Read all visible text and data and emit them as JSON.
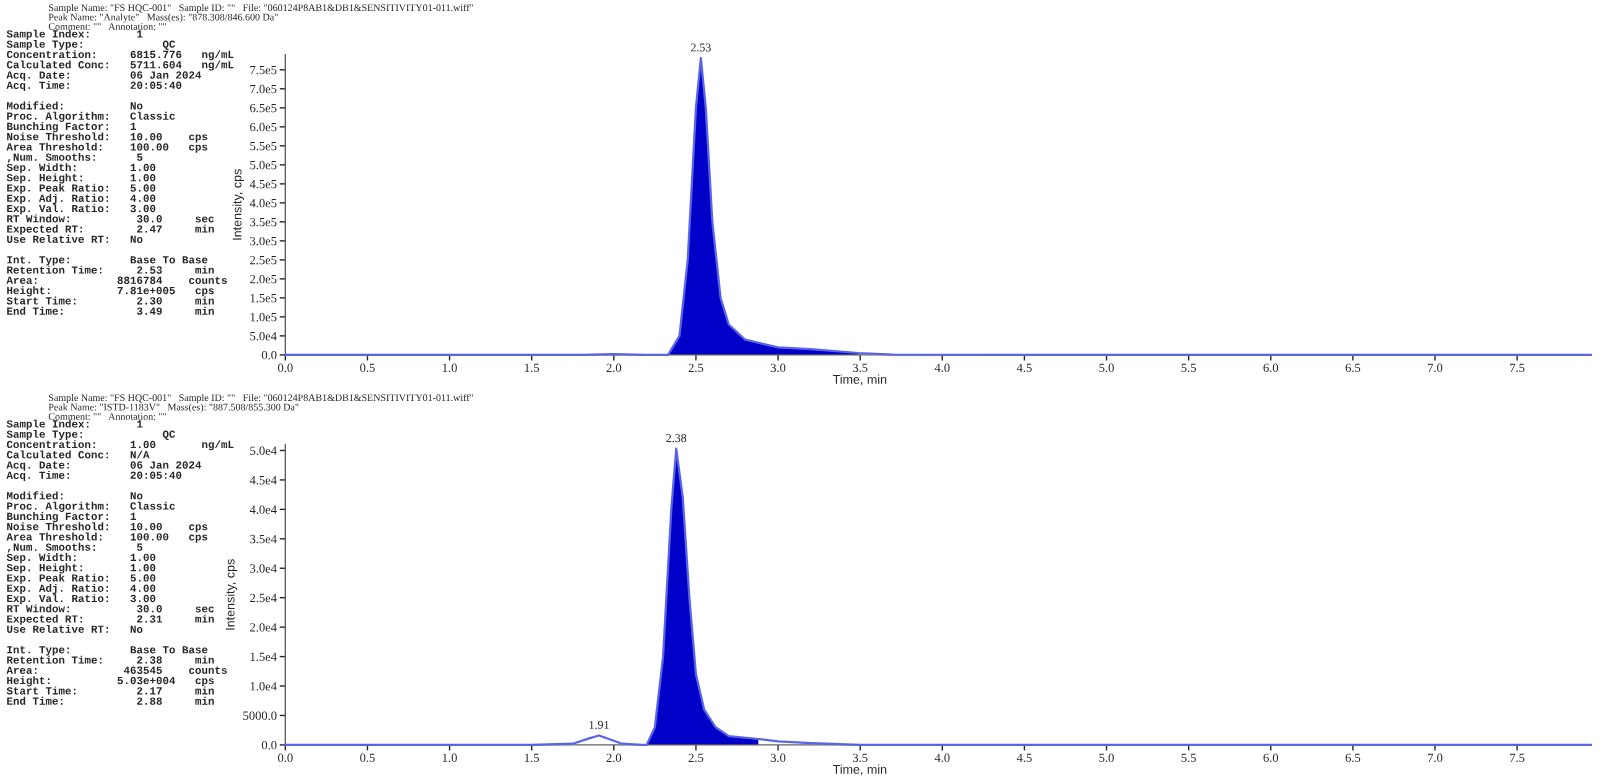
{
  "chart_data": [
    {
      "type": "line",
      "xlabel": "Time, min",
      "ylabel": "Intensity, cps",
      "xlim": [
        0,
        7.95
      ],
      "ylim": [
        0,
        790000
      ],
      "xticks": [
        {
          "value": 0,
          "label": "0.0"
        },
        {
          "value": 0.5,
          "label": "0.5"
        },
        {
          "value": 1,
          "label": "1.0"
        },
        {
          "value": 1.5,
          "label": "1.5"
        },
        {
          "value": 2,
          "label": "2.0"
        },
        {
          "value": 2.5,
          "label": "2.5"
        },
        {
          "value": 3,
          "label": "3.0"
        },
        {
          "value": 3.5,
          "label": "3.5"
        },
        {
          "value": 4,
          "label": "4.0"
        },
        {
          "value": 4.5,
          "label": "4.5"
        },
        {
          "value": 5,
          "label": "5.0"
        },
        {
          "value": 5.5,
          "label": "5.5"
        },
        {
          "value": 6,
          "label": "6.0"
        },
        {
          "value": 6.5,
          "label": "6.5"
        },
        {
          "value": 7,
          "label": "7.0"
        },
        {
          "value": 7.5,
          "label": "7.5"
        }
      ],
      "yticks": [
        {
          "value": 0,
          "label": "0.0"
        },
        {
          "value": 50000,
          "label": "5.0e4"
        },
        {
          "value": 100000,
          "label": "1.0e5"
        },
        {
          "value": 150000,
          "label": "1.5e5"
        },
        {
          "value": 200000,
          "label": "2.0e5"
        },
        {
          "value": 250000,
          "label": "2.5e5"
        },
        {
          "value": 300000,
          "label": "3.0e5"
        },
        {
          "value": 350000,
          "label": "3.5e5"
        },
        {
          "value": 400000,
          "label": "4.0e5"
        },
        {
          "value": 450000,
          "label": "4.5e5"
        },
        {
          "value": 500000,
          "label": "5.0e5"
        },
        {
          "value": 550000,
          "label": "5.5e5"
        },
        {
          "value": 600000,
          "label": "6.0e5"
        },
        {
          "value": 650000,
          "label": "6.5e5"
        },
        {
          "value": 700000,
          "label": "7.0e5"
        },
        {
          "value": 750000,
          "label": "7.5e5"
        }
      ],
      "series": [
        {
          "type": "line",
          "color": "#5a64e6",
          "x": [
            0,
            1.0,
            1.8,
            2.0,
            2.2,
            2.33,
            2.4,
            2.45,
            2.5,
            2.53,
            2.56,
            2.6,
            2.65,
            2.7,
            2.8,
            3.0,
            3.2,
            3.49,
            3.7,
            4.5,
            5.5,
            6.5,
            7.5,
            7.95
          ],
          "values": [
            0,
            0,
            0,
            2000,
            0,
            0,
            50000,
            250000,
            650000,
            781000,
            650000,
            350000,
            150000,
            80000,
            40000,
            20000,
            15000,
            5000,
            1000,
            0,
            0,
            0,
            0,
            0
          ]
        },
        {
          "type": "area",
          "color": "#0000c8",
          "x": [
            2.33,
            2.4,
            2.45,
            2.5,
            2.53,
            2.56,
            2.6,
            2.65,
            2.7,
            2.8,
            3.0,
            3.2,
            3.49
          ],
          "values": [
            0,
            50000,
            250000,
            650000,
            781000,
            650000,
            350000,
            150000,
            80000,
            40000,
            20000,
            15000,
            5000
          ]
        }
      ],
      "annotations": [
        "Sample Name: \"FS HQC-001\"   Sample ID: \"\"   File: \"060124P8AB1&DB1&SENSITIVITY01-011.wiff\"\nPeak Name: \"Analyte\"   Mass(es): \"878.308/846.600 Da\"\nComment: \"\"   Annotation: \"\"",
        "Sample Index:       1\nSample Type:            QC\nConcentration:     6815.776   ng/mL\nCalculated Conc:   5711.604   ng/mL\nAcq. Date:         06 Jan 2024\nAcq. Time:         20:05:40\n\nModified:          No\nProc. Algorithm:   Classic\nBunching Factor:   1\nNoise Threshold:   10.00    cps\nArea Threshold:    100.00   cps\n,Num. Smooths:      5\nSep. Width:        1.00\nSep. Height:       1.00\nExp. Peak Ratio:   5.00\nExp. Adj. Ratio:   4.00\nExp. Val. Ratio:   3.00\nRT Window:          30.0     sec\nExpected RT:        2.47     min\nUse Relative RT:   No\n\nInt. Type:         Base To Base\nRetention Time:     2.53     min\nArea:            8816784    counts\nHeight:          7.81e+005   cps\nStart Time:         2.30     min\nEnd Time:           3.49     min",
        {
          "text": "2.53",
          "x": 2.53,
          "y": 781000
        }
      ]
    },
    {
      "type": "line",
      "xlabel": "Time, min",
      "ylabel": "Intensity, cps",
      "xlim": [
        0,
        7.95
      ],
      "ylim": [
        0,
        51000
      ],
      "xticks": [
        {
          "value": 0,
          "label": "0.0"
        },
        {
          "value": 0.5,
          "label": "0.5"
        },
        {
          "value": 1,
          "label": "1.0"
        },
        {
          "value": 1.5,
          "label": "1.5"
        },
        {
          "value": 2,
          "label": "2.0"
        },
        {
          "value": 2.5,
          "label": "2.5"
        },
        {
          "value": 3,
          "label": "3.0"
        },
        {
          "value": 3.5,
          "label": "3.5"
        },
        {
          "value": 4,
          "label": "4.0"
        },
        {
          "value": 4.5,
          "label": "4.5"
        },
        {
          "value": 5,
          "label": "5.0"
        },
        {
          "value": 5.5,
          "label": "5.5"
        },
        {
          "value": 6,
          "label": "6.0"
        },
        {
          "value": 6.5,
          "label": "6.5"
        },
        {
          "value": 7,
          "label": "7.0"
        },
        {
          "value": 7.5,
          "label": "7.5"
        }
      ],
      "yticks": [
        {
          "value": 0,
          "label": "0.0"
        },
        {
          "value": 5000,
          "label": "5000.0"
        },
        {
          "value": 10000,
          "label": "1.0e4"
        },
        {
          "value": 15000,
          "label": "1.5e4"
        },
        {
          "value": 20000,
          "label": "2.0e4"
        },
        {
          "value": 25000,
          "label": "2.5e4"
        },
        {
          "value": 30000,
          "label": "3.0e4"
        },
        {
          "value": 35000,
          "label": "3.5e4"
        },
        {
          "value": 40000,
          "label": "4.0e4"
        },
        {
          "value": 45000,
          "label": "4.5e4"
        },
        {
          "value": 50000,
          "label": "5.0e4"
        }
      ],
      "series": [
        {
          "type": "line",
          "color": "#5a64e6",
          "x": [
            0,
            1.0,
            1.5,
            1.75,
            1.85,
            1.91,
            1.97,
            2.05,
            2.17,
            2.2,
            2.25,
            2.3,
            2.35,
            2.38,
            2.42,
            2.46,
            2.5,
            2.55,
            2.62,
            2.7,
            2.88,
            3.0,
            3.2,
            3.5,
            4.5,
            5.5,
            6.5,
            7.5,
            7.95
          ],
          "values": [
            0,
            0,
            0,
            200,
            1100,
            1600,
            1000,
            200,
            0,
            0,
            3000,
            15000,
            40000,
            50300,
            42000,
            25000,
            12000,
            6000,
            3000,
            1500,
            1000,
            600,
            300,
            0,
            0,
            0,
            0,
            0,
            0
          ]
        },
        {
          "type": "area",
          "color": "#0000c8",
          "x": [
            2.2,
            2.25,
            2.3,
            2.35,
            2.38,
            2.42,
            2.46,
            2.5,
            2.55,
            2.62,
            2.7,
            2.88
          ],
          "values": [
            0,
            3000,
            15000,
            40000,
            50300,
            42000,
            25000,
            12000,
            6000,
            3000,
            1500,
            1000
          ]
        }
      ],
      "annotations": [
        "Sample Name: \"FS HQC-001\"   Sample ID: \"\"   File: \"060124P8AB1&DB1&SENSITIVITY01-011.wiff\"\nPeak Name: \"ISTD-1183V\"   Mass(es): \"887.508/855.300 Da\"\nComment: \"\"   Annotation: \"\"",
        "Sample Index:       1\nSample Type:            QC\nConcentration:     1.00       ng/mL\nCalculated Conc:   N/A\nAcq. Date:         06 Jan 2024\nAcq. Time:         20:05:40\n\nModified:          No\nProc. Algorithm:   Classic\nBunching Factor:   1\nNoise Threshold:   10.00    cps\nArea Threshold:    100.00   cps\n,Num. Smooths:      5\nSep. Width:        1.00\nSep. Height:       1.00\nExp. Peak Ratio:   5.00\nExp. Adj. Ratio:   4.00\nExp. Val. Ratio:   3.00\nRT Window:          30.0     sec\nExpected RT:        2.31     min\nUse Relative RT:   No\n\nInt. Type:         Base To Base\nRetention Time:     2.38     min\nArea:             463545    counts\nHeight:          5.03e+004   cps\nStart Time:         2.17     min\nEnd Time:           2.88     min",
        {
          "text": "2.38",
          "x": 2.38,
          "y": 50300
        },
        {
          "text": "1.91",
          "x": 1.91,
          "y": 1600
        }
      ]
    }
  ]
}
